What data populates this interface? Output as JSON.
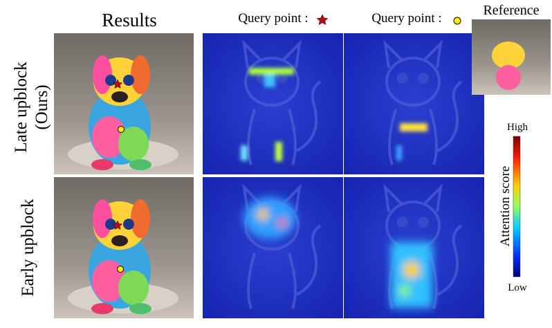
{
  "header": {
    "results": "Results",
    "query_star": "Query point :",
    "query_circle": "Query point :",
    "reference": "Reference"
  },
  "rows": [
    {
      "label": "Late upblock",
      "sublabel": "(Ours)"
    },
    {
      "label": "Early upblock"
    }
  ],
  "colorbar": {
    "title": "Attention score",
    "high": "High",
    "low": "Low"
  }
}
